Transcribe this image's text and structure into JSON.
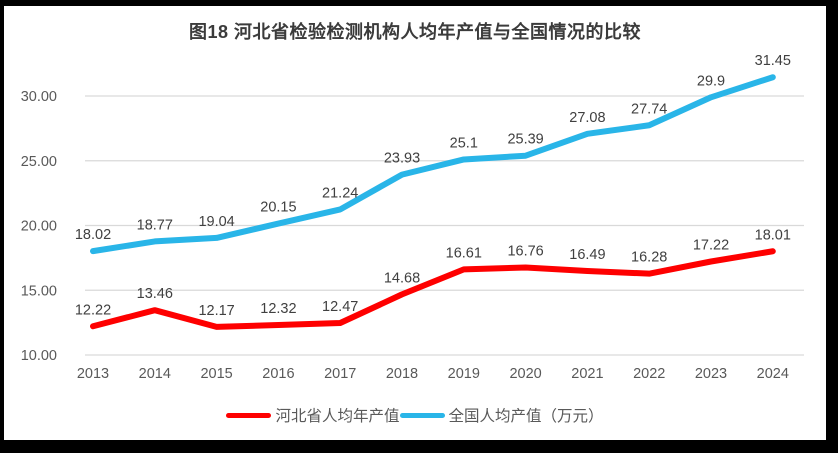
{
  "chart_data": {
    "type": "line",
    "title": "图18  河北省检验检测机构人均年产值与全国情况的比较",
    "categories": [
      "2013",
      "2014",
      "2015",
      "2016",
      "2017",
      "2018",
      "2019",
      "2020",
      "2021",
      "2022",
      "2023",
      "2024"
    ],
    "series": [
      {
        "name": "河北省人均年产值",
        "color": "#fe0000",
        "values": [
          12.22,
          13.46,
          12.17,
          12.32,
          12.47,
          14.68,
          16.61,
          16.76,
          16.49,
          16.28,
          17.22,
          18.01
        ],
        "labels": [
          "12.22",
          "13.46",
          "12.17",
          "12.32",
          "12.47",
          "14.68",
          "16.61",
          "16.76",
          "16.49",
          "16.28",
          "17.22",
          "18.01"
        ]
      },
      {
        "name": "全国人均产值（万元）",
        "color": "#29b5e8",
        "values": [
          18.02,
          18.77,
          19.04,
          20.15,
          21.24,
          23.93,
          25.1,
          25.39,
          27.08,
          27.74,
          29.9,
          31.45
        ],
        "labels": [
          "18.02",
          "18.77",
          "19.04",
          "20.15",
          "21.24",
          "23.93",
          "25.1",
          "25.39",
          "27.08",
          "27.74",
          "29.9",
          "31.45"
        ]
      }
    ],
    "y_ticks": [
      "10.00",
      "15.00",
      "20.00",
      "25.00",
      "30.00"
    ],
    "ylim": [
      10,
      30
    ],
    "grid": true,
    "legend_position": "bottom",
    "colors": {
      "gridline": "#d9d9d9",
      "tick_text": "#595959",
      "data_label_text": "#404040",
      "title_text": "#3b3b3b",
      "frame_border": "#000000"
    }
  }
}
